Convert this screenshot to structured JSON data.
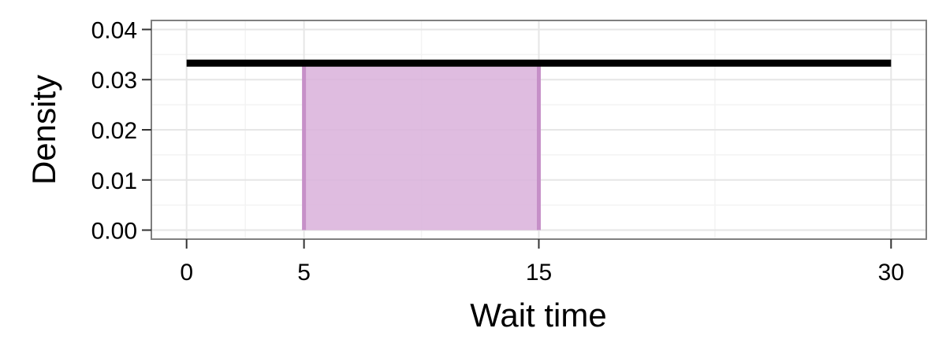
{
  "chart_data": {
    "type": "area",
    "title": "",
    "xlabel": "Wait time",
    "ylabel": "Density",
    "xlim": [
      -1.5,
      31.5
    ],
    "ylim": [
      -0.0018,
      0.0418
    ],
    "x_ticks": [
      0,
      5,
      15,
      30
    ],
    "x_tick_labels": [
      "0",
      "5",
      "15",
      "30"
    ],
    "y_ticks": [
      0,
      0.01,
      0.02,
      0.03,
      0.04
    ],
    "y_tick_labels": [
      "0.00",
      "0.01",
      "0.02",
      "0.03",
      "0.04"
    ],
    "x_minor_grid": [
      2.5,
      10,
      22.5
    ],
    "y_minor_grid": [
      0.005,
      0.015,
      0.025,
      0.035
    ],
    "grid": true,
    "series": [
      {
        "kind": "line",
        "x": [
          0,
          30
        ],
        "y": [
          0.0333,
          0.0333
        ],
        "color": "#000000"
      },
      {
        "kind": "shaded-region",
        "x": [
          5,
          15
        ],
        "y": [
          0.0333,
          0.0333
        ],
        "fill": "#d9b0da",
        "edge": "#c690c8"
      }
    ]
  }
}
